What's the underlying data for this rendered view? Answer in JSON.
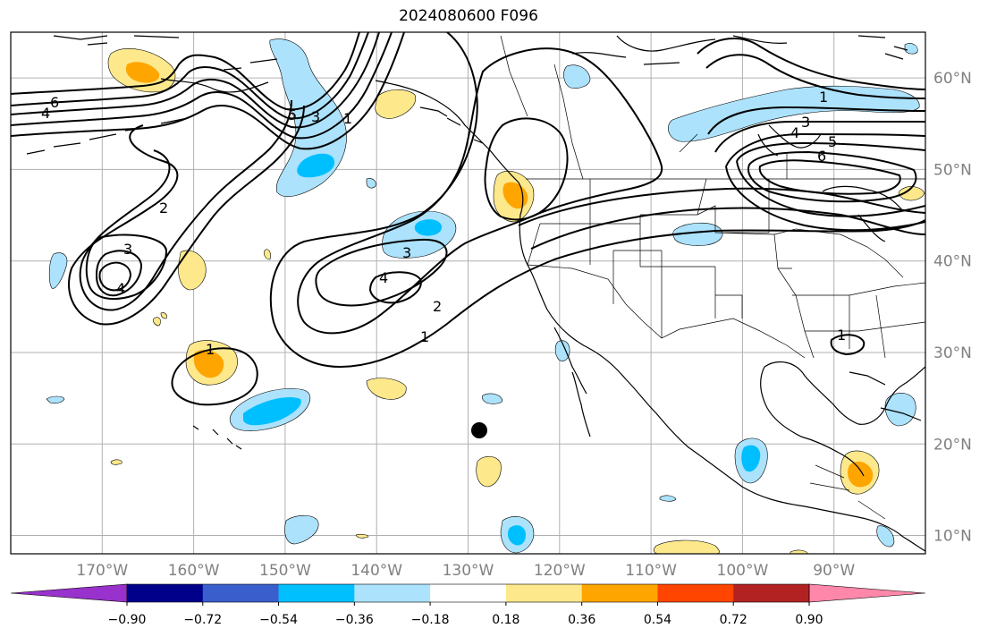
{
  "title": "2024080600 F096",
  "map": {
    "projection": "PlateCarree",
    "lon_range": [
      -180,
      -80
    ],
    "lat_range": [
      8,
      65
    ],
    "lon_ticks": [
      "170°W",
      "160°W",
      "150°W",
      "140°W",
      "130°W",
      "120°W",
      "110°W",
      "100°W",
      "90°W"
    ],
    "lat_ticks": [
      "10°N",
      "20°N",
      "30°N",
      "40°N",
      "50°N",
      "60°N"
    ],
    "gridlines": true,
    "marker": {
      "lon": -129.5,
      "lat": 21.5,
      "shape": "filled-circle"
    }
  },
  "contour_labels": [
    "6",
    "4",
    "5",
    "3",
    "1",
    "2",
    "3",
    "4",
    "1",
    "2",
    "3",
    "4",
    "1",
    "1",
    "3",
    "4",
    "5",
    "6",
    "1"
  ],
  "colorbar": {
    "extend": "both",
    "ticks": [
      "−0.90",
      "−0.72",
      "−0.54",
      "−0.36",
      "−0.18",
      "0.18",
      "0.36",
      "0.54",
      "0.72",
      "0.90"
    ],
    "colors": [
      "#9932cc",
      "#00008b",
      "#3a5fcd",
      "#00bfff",
      "#ace2fc",
      "#ffffff",
      "#fde98c",
      "#ffa500",
      "#ff4500",
      "#b22222",
      "#ff88aa"
    ]
  },
  "colors": {
    "shade_neg1": "#ace2fc",
    "shade_neg2": "#00bfff",
    "shade_pos1": "#fde98c",
    "shade_pos2": "#ffa500",
    "grid": "#b0b0b0",
    "contour": "#000000"
  }
}
